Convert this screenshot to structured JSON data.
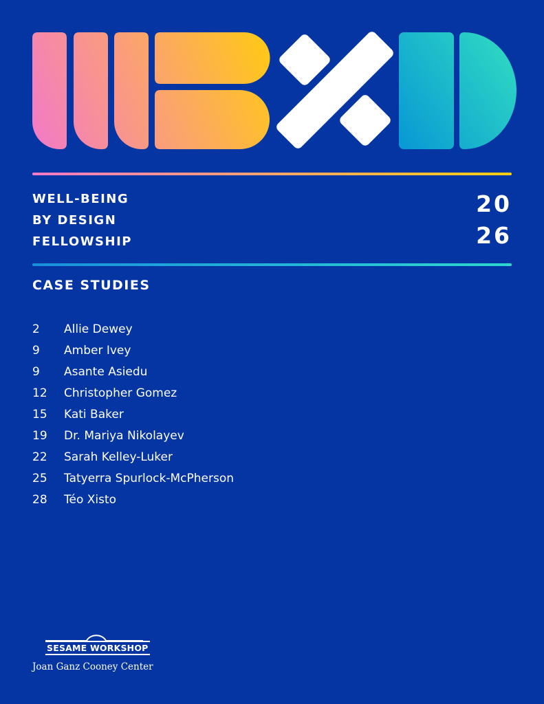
{
  "program": {
    "title_lines": [
      "WELL-BEING",
      "BY DESIGN",
      "FELLOWSHIP"
    ],
    "year_lines": [
      "20",
      "26"
    ]
  },
  "section_title": "CASE STUDIES",
  "entries": [
    {
      "page": "2",
      "name": "Allie Dewey"
    },
    {
      "page": "9",
      "name": "Amber Ivey"
    },
    {
      "page": "9",
      "name": "Asante Asiedu"
    },
    {
      "page": "12",
      "name": "Christopher Gomez"
    },
    {
      "page": "15",
      "name": "Kati Baker"
    },
    {
      "page": "19",
      "name": "Dr. Mariya Nikolayev"
    },
    {
      "page": "22",
      "name": "Sarah Kelley-Luker"
    },
    {
      "page": "25",
      "name": "Tatyerra Spurlock-McPherson"
    },
    {
      "page": "28",
      "name": "Téo Xisto"
    }
  ],
  "footer": {
    "brand": "SESAME WORKSHOP",
    "center": "Joan Ganz Cooney Center"
  }
}
